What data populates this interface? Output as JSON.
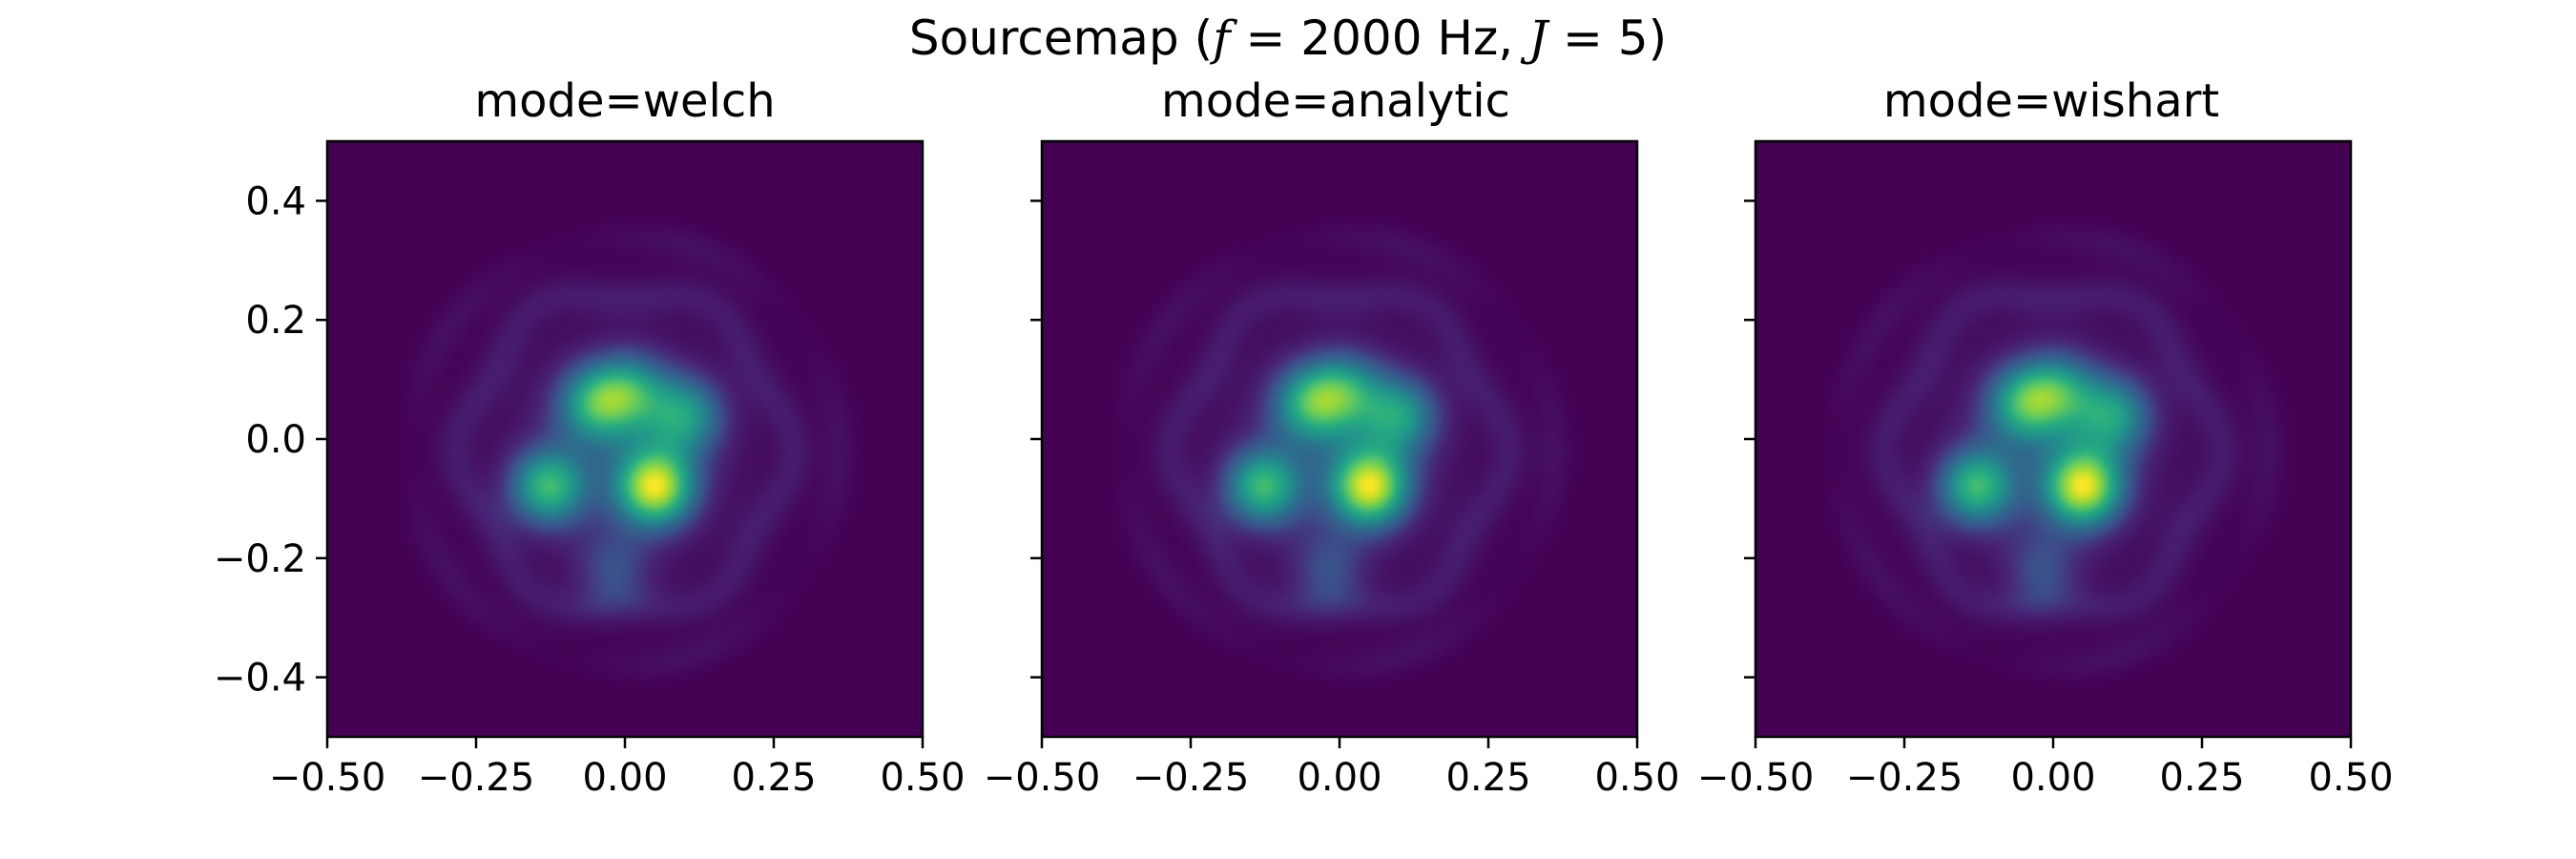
{
  "figure": {
    "title_prefix": "Sourcemap (",
    "title_f_symbol": "f",
    "title_f_value": " = 2000 Hz, ",
    "title_j_symbol": "J",
    "title_j_value": " = 5)"
  },
  "chart_data": [
    {
      "type": "heatmap",
      "title": "mode=welch",
      "xlim": [
        -0.5,
        0.5
      ],
      "ylim": [
        -0.5,
        0.5
      ],
      "xticks": [
        "−0.50",
        "−0.25",
        "0.00",
        "0.25",
        "0.50"
      ],
      "yticks": [
        "0.4",
        "0.2",
        "0.0",
        "−0.2",
        "−0.4"
      ],
      "show_ytick_labels": true,
      "colormap": "viridis",
      "sources": [
        {
          "x": 0.05,
          "y": -0.08,
          "level": 1.0
        },
        {
          "x": -0.13,
          "y": -0.08,
          "level": 0.72
        },
        {
          "x": -0.05,
          "y": 0.06,
          "level": 0.6
        },
        {
          "x": 0.1,
          "y": 0.04,
          "level": 0.55
        },
        {
          "x": 0.01,
          "y": 0.08,
          "level": 0.5
        },
        {
          "x": -0.02,
          "y": -0.22,
          "level": 0.25
        }
      ]
    },
    {
      "type": "heatmap",
      "title": "mode=analytic",
      "xlim": [
        -0.5,
        0.5
      ],
      "ylim": [
        -0.5,
        0.5
      ],
      "xticks": [
        "−0.50",
        "−0.25",
        "0.00",
        "0.25",
        "0.50"
      ],
      "yticks": [
        "0.4",
        "0.2",
        "0.0",
        "−0.2",
        "−0.4"
      ],
      "show_ytick_labels": false,
      "colormap": "viridis",
      "sources": [
        {
          "x": 0.05,
          "y": -0.08,
          "level": 1.0
        },
        {
          "x": -0.13,
          "y": -0.08,
          "level": 0.72
        },
        {
          "x": -0.05,
          "y": 0.06,
          "level": 0.6
        },
        {
          "x": 0.1,
          "y": 0.04,
          "level": 0.55
        },
        {
          "x": 0.01,
          "y": 0.08,
          "level": 0.5
        },
        {
          "x": -0.02,
          "y": -0.22,
          "level": 0.25
        }
      ]
    },
    {
      "type": "heatmap",
      "title": "mode=wishart",
      "xlim": [
        -0.5,
        0.5
      ],
      "ylim": [
        -0.5,
        0.5
      ],
      "xticks": [
        "−0.50",
        "−0.25",
        "0.00",
        "0.25",
        "0.50"
      ],
      "yticks": [
        "0.4",
        "0.2",
        "0.0",
        "−0.2",
        "−0.4"
      ],
      "show_ytick_labels": false,
      "colormap": "viridis",
      "sources": [
        {
          "x": 0.05,
          "y": -0.08,
          "level": 1.0
        },
        {
          "x": -0.13,
          "y": -0.08,
          "level": 0.72
        },
        {
          "x": -0.05,
          "y": 0.06,
          "level": 0.6
        },
        {
          "x": 0.1,
          "y": 0.04,
          "level": 0.55
        },
        {
          "x": 0.01,
          "y": 0.08,
          "level": 0.5
        },
        {
          "x": -0.02,
          "y": -0.22,
          "level": 0.25
        }
      ]
    }
  ],
  "colors": {
    "viridis_low": "#440154",
    "viridis_mid": "#21918c",
    "viridis_high": "#fde725",
    "axis": "#000000"
  }
}
